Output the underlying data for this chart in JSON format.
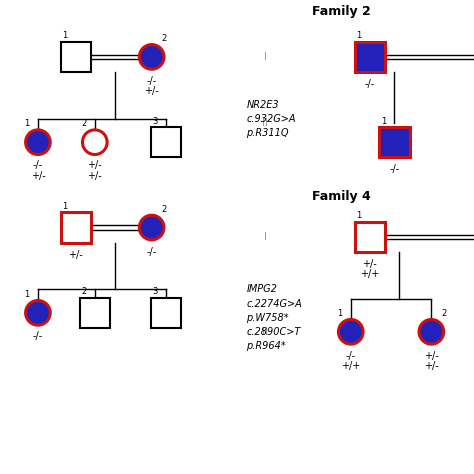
{
  "family2_title": "Family 2",
  "family4_title": "Family 4",
  "gene_info_family2_line1": "NR2E3",
  "gene_info_family2_line2": "c.932G>A",
  "gene_info_family2_line3": "p.R311Q",
  "gene_info_family4_line1": "IMPG2",
  "gene_info_family4_line2": "c.2274G>A",
  "gene_info_family4_line3": "p.W758*",
  "gene_info_family4_line4": "c.2890C>T",
  "gene_info_family4_line5": "p.R964*",
  "bg_color": "#ffffff",
  "blue_fill": "#2222bb",
  "red_border": "#cc1111",
  "black": "#000000",
  "gray": "#999999"
}
